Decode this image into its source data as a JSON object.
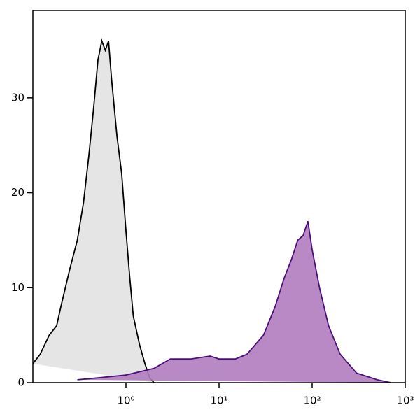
{
  "chart_data": {
    "type": "area",
    "log_x": true,
    "xlim": [
      0.1,
      1000
    ],
    "ylim": [
      0,
      39.2
    ],
    "xticks": [
      {
        "value": 1,
        "label": "10⁰"
      },
      {
        "value": 10,
        "label": "10¹"
      },
      {
        "value": 100,
        "label": "10²"
      },
      {
        "value": 1000,
        "label": "10³"
      }
    ],
    "yticks": [
      0,
      10,
      20,
      30
    ],
    "series": [
      {
        "color": "#e2e2e2",
        "line_color": "#000000",
        "x": [
          0.1,
          0.12,
          0.15,
          0.18,
          0.2,
          0.25,
          0.3,
          0.35,
          0.4,
          0.45,
          0.5,
          0.55,
          0.6,
          0.65,
          0.7,
          0.8,
          0.9,
          1.0,
          1.1,
          1.2,
          1.4,
          1.6,
          1.8,
          2.0
        ],
        "values": [
          2,
          3,
          5,
          6,
          8,
          12,
          15,
          19,
          24,
          29,
          34,
          36,
          35,
          36,
          32,
          26,
          22,
          16,
          11,
          7,
          4,
          2,
          0.5,
          0
        ]
      },
      {
        "color": "#b07cbf",
        "line_color": "#4b0f7a",
        "x": [
          0.3,
          0.5,
          1,
          2,
          3,
          5,
          8,
          10,
          15,
          20,
          30,
          40,
          50,
          60,
          70,
          80,
          90,
          100,
          120,
          150,
          200,
          300,
          500,
          700
        ],
        "values": [
          0.3,
          0.5,
          0.8,
          1.5,
          2.5,
          2.5,
          2.8,
          2.5,
          2.5,
          3,
          5,
          8,
          11,
          13,
          15,
          15.5,
          17,
          14,
          10,
          6,
          3,
          1,
          0.3,
          0
        ]
      }
    ]
  }
}
